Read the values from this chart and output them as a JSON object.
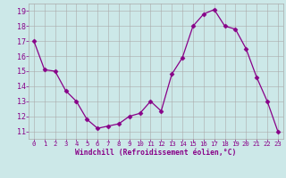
{
  "x": [
    0,
    1,
    2,
    3,
    4,
    5,
    6,
    7,
    8,
    9,
    10,
    11,
    12,
    13,
    14,
    15,
    16,
    17,
    18,
    19,
    20,
    21,
    22,
    23
  ],
  "y": [
    17.0,
    15.1,
    15.0,
    13.7,
    13.0,
    11.8,
    11.2,
    11.35,
    11.5,
    12.0,
    12.2,
    13.0,
    12.35,
    14.8,
    15.9,
    18.0,
    18.8,
    19.1,
    18.0,
    17.8,
    16.5,
    14.6,
    13.0,
    11.0
  ],
  "line_color": "#880088",
  "marker": "D",
  "marker_size": 2.5,
  "bg_color": "#cce8e8",
  "grid_color": "#aaaaaa",
  "xlabel": "Windchill (Refroidissement éolien,°C)",
  "xlabel_color": "#880088",
  "tick_color": "#880088",
  "ylim": [
    10.5,
    19.5
  ],
  "xlim": [
    -0.5,
    23.5
  ],
  "yticks": [
    11,
    12,
    13,
    14,
    15,
    16,
    17,
    18,
    19
  ],
  "xticks": [
    0,
    1,
    2,
    3,
    4,
    5,
    6,
    7,
    8,
    9,
    10,
    11,
    12,
    13,
    14,
    15,
    16,
    17,
    18,
    19,
    20,
    21,
    22,
    23
  ],
  "xtick_labels": [
    "0",
    "1",
    "2",
    "3",
    "4",
    "5",
    "6",
    "7",
    "8",
    "9",
    "10",
    "11",
    "12",
    "13",
    "14",
    "15",
    "16",
    "17",
    "18",
    "19",
    "20",
    "21",
    "22",
    "23"
  ]
}
